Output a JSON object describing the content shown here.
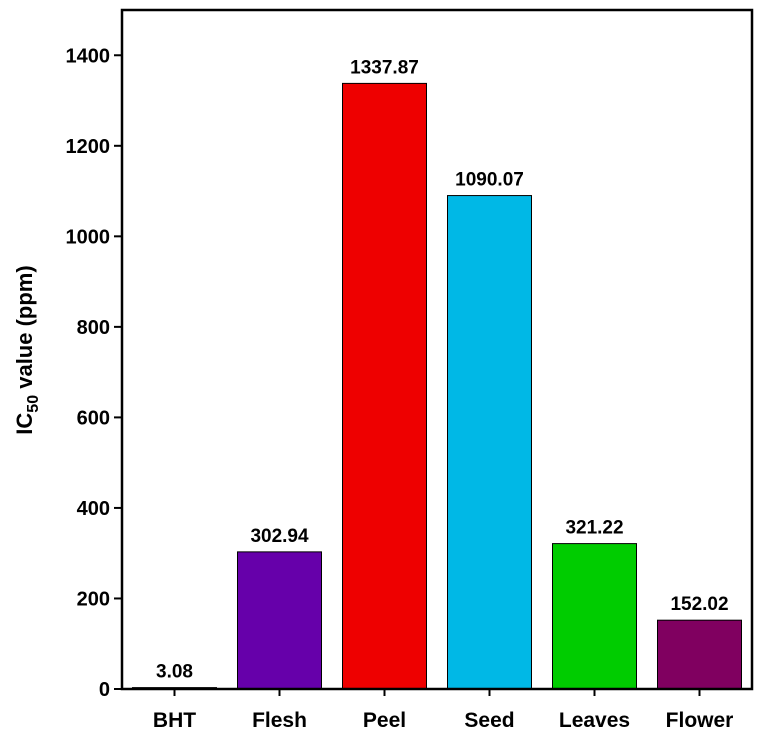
{
  "chart_data": {
    "type": "bar",
    "y_label_parts": [
      "IC",
      "50",
      " value (ppm)"
    ],
    "categories": [
      "BHT",
      "Flesh",
      "Peel",
      "Seed",
      "Leaves",
      "Flower"
    ],
    "values": [
      3.08,
      302.94,
      1337.87,
      1090.07,
      321.22,
      152.02
    ],
    "colors": [
      "#000000",
      "#6600aa",
      "#ee0000",
      "#00b8e6",
      "#00cc00",
      "#800060"
    ],
    "ylim": [
      0,
      1500
    ],
    "yticks": [
      0,
      200,
      400,
      600,
      800,
      1000,
      1200,
      1400
    ]
  }
}
